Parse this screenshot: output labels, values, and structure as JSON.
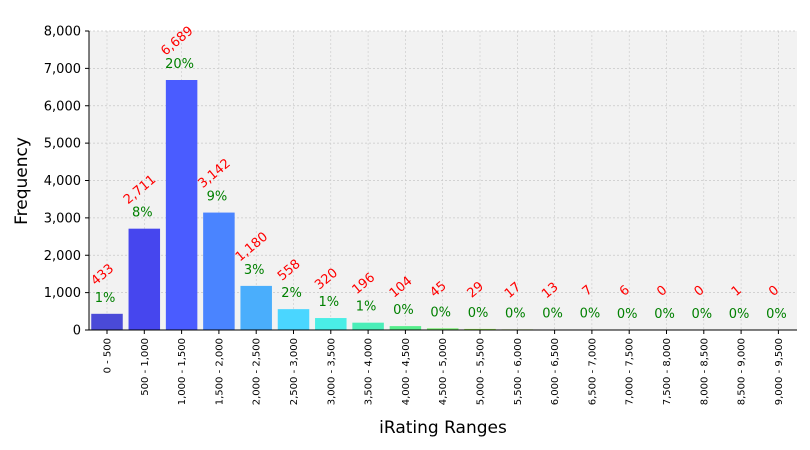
{
  "chart_data": {
    "type": "bar",
    "xlabel": "iRating Ranges",
    "ylabel": "Frequency",
    "ylim": [
      0,
      8000
    ],
    "yticks": [
      0,
      1000,
      2000,
      3000,
      4000,
      5000,
      6000,
      7000,
      8000
    ],
    "grid": true,
    "categories": [
      "0 - 500",
      "500 - 1,000",
      "1,000 - 1,500",
      "1,500 - 2,000",
      "2,000 - 2,500",
      "2,500 - 3,000",
      "3,000 - 3,500",
      "3,500 - 4,000",
      "4,000 - 4,500",
      "4,500 - 5,000",
      "5,000 - 5,500",
      "5,500 - 6,000",
      "6,000 - 6,500",
      "6,500 - 7,000",
      "7,000 - 7,500",
      "7,500 - 8,000",
      "8,000 - 8,500",
      "8,500 - 9,000",
      "9,000 - 9,500"
    ],
    "values": [
      433,
      2711,
      6689,
      3142,
      1180,
      558,
      320,
      196,
      104,
      45,
      29,
      17,
      13,
      7,
      6,
      0,
      0,
      1,
      0
    ],
    "count_labels": [
      "433",
      "2,711",
      "6,689",
      "3,142",
      "1,180",
      "558",
      "320",
      "196",
      "104",
      "45",
      "29",
      "17",
      "13",
      "7",
      "6",
      "0",
      "0",
      "1",
      "0"
    ],
    "percent_labels": [
      "1%",
      "8%",
      "20%",
      "9%",
      "3%",
      "2%",
      "1%",
      "1%",
      "0%",
      "0%",
      "0%",
      "0%",
      "0%",
      "0%",
      "0%",
      "0%",
      "0%",
      "0%",
      "0%"
    ],
    "bar_colors": [
      "#4a4ad8",
      "#4646ee",
      "#4a5cff",
      "#4a84ff",
      "#4aaefc",
      "#4ad6ff",
      "#4aeee6",
      "#4aeeb8",
      "#56ee8c",
      "#74ee6e",
      "#96ee52",
      "#b6ee46",
      "#d6ee46",
      "#eeee46",
      "#eed246",
      "#eeb046",
      "#ee8e46",
      "#ee6c46",
      "#ee4a46"
    ],
    "colors": {
      "count_label": "#ff0000",
      "percent_label": "#008000",
      "plot_background": "#f2f2f2",
      "grid": "#c8c8c8"
    }
  }
}
